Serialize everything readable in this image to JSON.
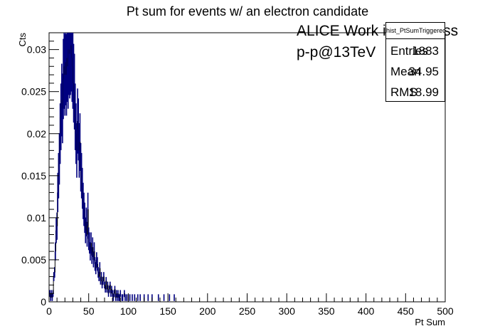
{
  "chart_data": {
    "type": "histogram",
    "title": "Pt sum for events w/ an electron candidate",
    "xlabel": "Pt Sum",
    "ylabel": "Cts",
    "xlim": [
      0,
      500
    ],
    "ylim": [
      0,
      0.032
    ],
    "x_ticks": [
      "0",
      "50",
      "100",
      "150",
      "200",
      "250",
      "300",
      "350",
      "400",
      "450",
      "500"
    ],
    "y_ticks": [
      "0",
      "0.005",
      "0.01",
      "0.015",
      "0.02",
      "0.025",
      "0.03"
    ],
    "annotations": [
      "ALICE Work in Progress",
      "p-p@13TeV"
    ],
    "line_color": "#000080",
    "bin_width": 1,
    "bins": [
      [
        1,
        0.001
      ],
      [
        2,
        0.0005
      ],
      [
        3,
        0.001
      ],
      [
        4,
        0.0005
      ],
      [
        5,
        0.001
      ],
      [
        6,
        0.003
      ],
      [
        7,
        0.0035
      ],
      [
        8,
        0.006
      ],
      [
        9,
        0.0085
      ],
      [
        10,
        0.009
      ],
      [
        11,
        0.013
      ],
      [
        12,
        0.015
      ],
      [
        13,
        0.017
      ],
      [
        14,
        0.02
      ],
      [
        15,
        0.022
      ],
      [
        16,
        0.024
      ],
      [
        17,
        0.023
      ],
      [
        18,
        0.0265
      ],
      [
        19,
        0.028
      ],
      [
        20,
        0.027
      ],
      [
        21,
        0.0285
      ],
      [
        22,
        0.027
      ],
      [
        23,
        0.029
      ],
      [
        24,
        0.028
      ],
      [
        25,
        0.03
      ],
      [
        26,
        0.0295
      ],
      [
        27,
        0.03
      ],
      [
        28,
        0.0305
      ],
      [
        29,
        0.029
      ],
      [
        30,
        0.028
      ],
      [
        31,
        0.026
      ],
      [
        32,
        0.025
      ],
      [
        33,
        0.022
      ],
      [
        34,
        0.02
      ],
      [
        35,
        0.018
      ],
      [
        36,
        0.0215
      ],
      [
        37,
        0.0205
      ],
      [
        38,
        0.018
      ],
      [
        39,
        0.019
      ],
      [
        40,
        0.016
      ],
      [
        41,
        0.015
      ],
      [
        42,
        0.0135
      ],
      [
        43,
        0.012
      ],
      [
        44,
        0.011
      ],
      [
        45,
        0.01
      ],
      [
        46,
        0.0085
      ],
      [
        47,
        0.0095
      ],
      [
        48,
        0.008
      ],
      [
        49,
        0.011
      ],
      [
        50,
        0.0075
      ],
      [
        51,
        0.007
      ],
      [
        52,
        0.006
      ],
      [
        53,
        0.007
      ],
      [
        54,
        0.0055
      ],
      [
        55,
        0.0065
      ],
      [
        56,
        0.005
      ],
      [
        57,
        0.006
      ],
      [
        58,
        0.0045
      ],
      [
        59,
        0.004
      ],
      [
        60,
        0.005
      ],
      [
        61,
        0.0045
      ],
      [
        62,
        0.0035
      ],
      [
        63,
        0.003
      ],
      [
        64,
        0.004
      ],
      [
        65,
        0.0025
      ],
      [
        66,
        0.003
      ],
      [
        67,
        0.002
      ],
      [
        68,
        0.0025
      ],
      [
        69,
        0.003
      ],
      [
        70,
        0.002
      ],
      [
        71,
        0.0015
      ],
      [
        72,
        0.0025
      ],
      [
        73,
        0.0015
      ],
      [
        74,
        0.002
      ],
      [
        75,
        0.001
      ],
      [
        76,
        0.0015
      ],
      [
        77,
        0.002
      ],
      [
        78,
        0.001
      ],
      [
        79,
        0.0015
      ],
      [
        80,
        0.001
      ],
      [
        81,
        0.0005
      ],
      [
        82,
        0.001
      ],
      [
        83,
        0.0015
      ],
      [
        84,
        0.0005
      ],
      [
        85,
        0.001
      ],
      [
        86,
        0.0005
      ],
      [
        87,
        0.001
      ],
      [
        88,
        0.0005
      ],
      [
        89,
        0.0005
      ],
      [
        90,
        0.001
      ],
      [
        92,
        0.0005
      ],
      [
        93,
        0.0005
      ],
      [
        95,
        0.001
      ],
      [
        96,
        0.0005
      ],
      [
        98,
        0.0005
      ],
      [
        100,
        0.0005
      ],
      [
        102,
        0.0005
      ],
      [
        105,
        0.0005
      ],
      [
        108,
        0.0005
      ],
      [
        112,
        0.0005
      ],
      [
        115,
        0.0005
      ],
      [
        120,
        0.0005
      ],
      [
        125,
        0.0005
      ],
      [
        130,
        0.0005
      ],
      [
        138,
        0.0005
      ],
      [
        145,
        0.0005
      ],
      [
        152,
        0.0005
      ],
      [
        158,
        0.0005
      ]
    ]
  },
  "stats": {
    "name": "hist_PtSumTriggeredEMCJet",
    "rows": [
      {
        "key": "Entries",
        "value": "1883"
      },
      {
        "key": "Mean",
        "value": "34.95"
      },
      {
        "key": "RMS",
        "value": "18.99"
      }
    ]
  }
}
